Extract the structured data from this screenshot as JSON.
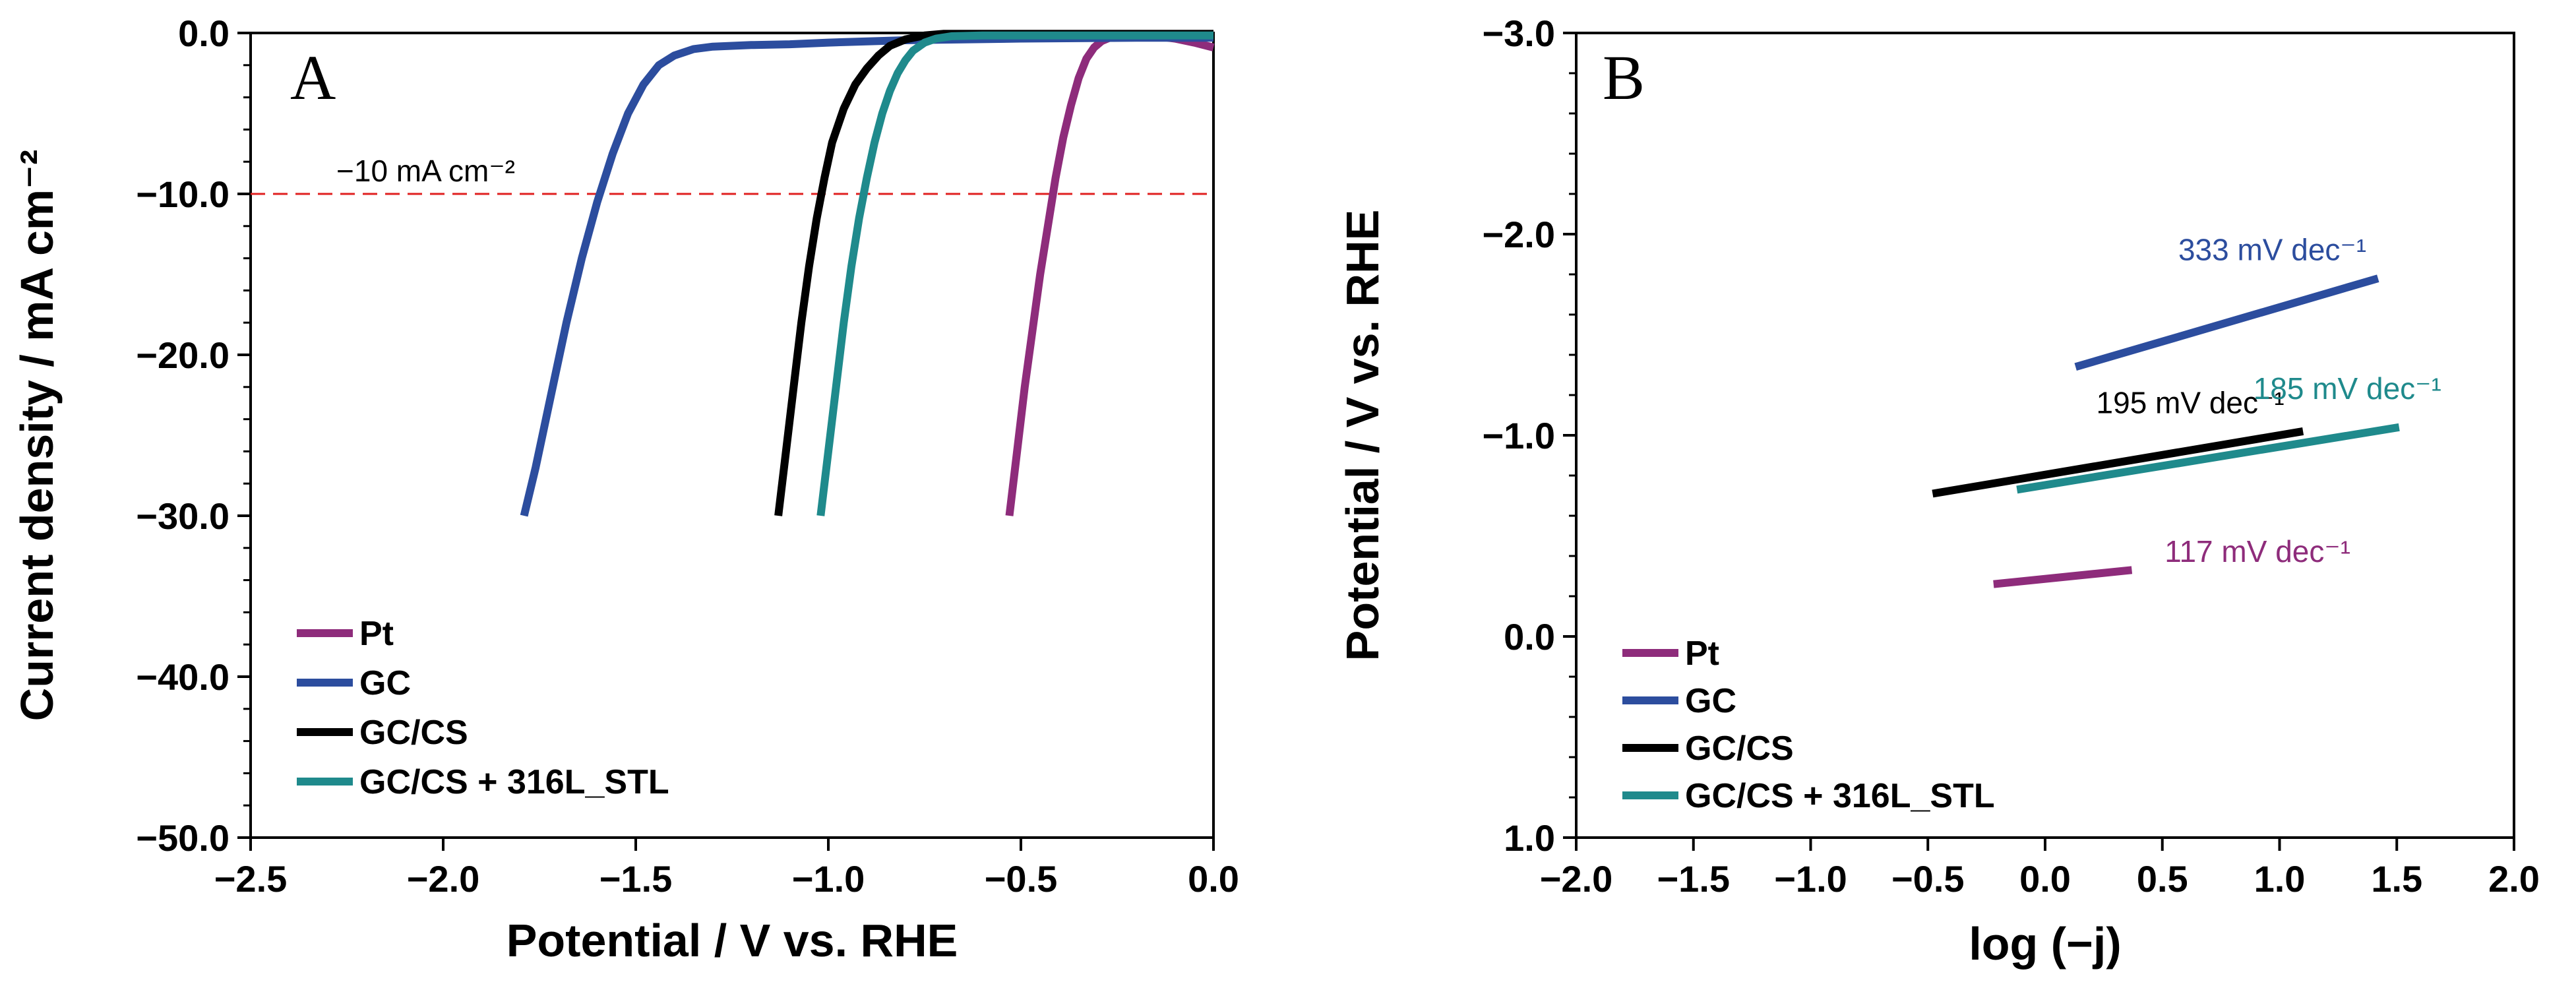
{
  "colors": {
    "Pt": "#8e2c7b",
    "GC": "#2c4d9e",
    "GC/CS": "#000000",
    "GC/CS + 316L_STL": "#1f8a8c",
    "refline": "#e02020"
  },
  "chart_data": [
    {
      "type": "line",
      "panel": "A",
      "xlabel": "Potential / V vs. RHE",
      "ylabel": "Current density / mA cm⁻²",
      "xlim": [
        -2.5,
        0.0
      ],
      "ylim": [
        -50.0,
        0.0
      ],
      "xticks": [
        -2.5,
        -2.0,
        -1.5,
        -1.0,
        -0.5,
        0.0
      ],
      "xtick_labels": [
        "−2.5",
        "−2.0",
        "−1.5",
        "−1.0",
        "−0.5",
        "0.0"
      ],
      "yticks": [
        0.0,
        -10.0,
        -20.0,
        -30.0,
        -40.0,
        -50.0
      ],
      "ytick_labels": [
        "0.0",
        "−10.0",
        "−20.0",
        "−30.0",
        "−40.0",
        "−50.0"
      ],
      "grid": false,
      "legend_position": "bottom-left",
      "reference_line": {
        "y": -10.0,
        "label": "−10 mA cm⁻²"
      },
      "series": [
        {
          "name": "Pt",
          "x": [
            -0.53,
            -0.51,
            -0.49,
            -0.47,
            -0.45,
            -0.43,
            -0.41,
            -0.39,
            -0.37,
            -0.35,
            -0.33,
            -0.31,
            -0.29,
            -0.27,
            -0.25,
            -0.2,
            -0.15,
            -0.1,
            -0.05,
            0.0
          ],
          "y": [
            -30,
            -26,
            -22,
            -18.5,
            -15,
            -12,
            -9,
            -6.5,
            -4.5,
            -2.8,
            -1.6,
            -0.9,
            -0.5,
            -0.3,
            -0.2,
            -0.15,
            -0.2,
            -0.35,
            -0.6,
            -0.9
          ]
        },
        {
          "name": "GC",
          "x": [
            -1.79,
            -1.76,
            -1.72,
            -1.68,
            -1.64,
            -1.6,
            -1.56,
            -1.52,
            -1.48,
            -1.44,
            -1.4,
            -1.35,
            -1.3,
            -1.25,
            -1.2,
            -1.1,
            -1.0,
            -0.8,
            -0.5,
            -0.2,
            0.0
          ],
          "y": [
            -30,
            -27,
            -22.5,
            -18,
            -14,
            -10.5,
            -7.5,
            -5,
            -3.2,
            -2,
            -1.4,
            -1,
            -0.85,
            -0.8,
            -0.75,
            -0.7,
            -0.6,
            -0.45,
            -0.35,
            -0.3,
            -0.3
          ]
        },
        {
          "name": "GC/CS",
          "x": [
            -1.13,
            -1.11,
            -1.09,
            -1.07,
            -1.05,
            -1.03,
            -1.01,
            -0.99,
            -0.96,
            -0.93,
            -0.9,
            -0.87,
            -0.84,
            -0.8,
            -0.75,
            -0.7,
            -0.5,
            -0.2,
            0.0
          ],
          "y": [
            -30,
            -26,
            -22,
            -18,
            -14.5,
            -11.5,
            -9,
            -6.8,
            -4.7,
            -3.2,
            -2.2,
            -1.4,
            -0.8,
            -0.4,
            -0.15,
            -0.05,
            -0.05,
            -0.05,
            -0.05
          ]
        },
        {
          "name": "GC/CS + 316L_STL",
          "x": [
            -1.02,
            -1.0,
            -0.98,
            -0.96,
            -0.94,
            -0.92,
            -0.9,
            -0.88,
            -0.86,
            -0.84,
            -0.82,
            -0.8,
            -0.78,
            -0.75,
            -0.72,
            -0.68,
            -0.6,
            -0.4,
            -0.2,
            0.0
          ],
          "y": [
            -30,
            -26,
            -22,
            -18,
            -14.5,
            -11.5,
            -9,
            -6.8,
            -5,
            -3.6,
            -2.5,
            -1.7,
            -1.1,
            -0.6,
            -0.35,
            -0.2,
            -0.15,
            -0.15,
            -0.15,
            -0.15
          ]
        }
      ]
    },
    {
      "type": "line",
      "panel": "B",
      "xlabel": "log (−j)",
      "ylabel": "Potential / V vs. RHE",
      "xlim": [
        -2.0,
        2.0
      ],
      "ylim": [
        1.0,
        -3.0
      ],
      "xticks": [
        -2.0,
        -1.5,
        -1.0,
        -0.5,
        0.0,
        0.5,
        1.0,
        1.5,
        2.0
      ],
      "xtick_labels": [
        "−2.0",
        "−1.5",
        "−1.0",
        "−0.5",
        "0.0",
        "0.5",
        "1.0",
        "1.5",
        "2.0"
      ],
      "yticks": [
        -3.0,
        -2.0,
        -1.0,
        0.0,
        1.0
      ],
      "ytick_labels": [
        "−3.0",
        "−2.0",
        "−1.0",
        "0.0",
        "1.0"
      ],
      "grid": false,
      "legend_position": "bottom-left",
      "series": [
        {
          "name": "Pt",
          "x": [
            -0.22,
            0.37
          ],
          "y": [
            -0.26,
            -0.33
          ],
          "slope_label": "117 mV dec⁻¹"
        },
        {
          "name": "GC",
          "x": [
            0.13,
            1.42
          ],
          "y": [
            -1.34,
            -1.78
          ],
          "slope_label": "333 mV dec⁻¹"
        },
        {
          "name": "GC/CS",
          "x": [
            -0.48,
            1.1
          ],
          "y": [
            -0.71,
            -1.02
          ],
          "slope_label": "195 mV dec⁻¹"
        },
        {
          "name": "GC/CS + 316L_STL",
          "x": [
            -0.12,
            1.51
          ],
          "y": [
            -0.73,
            -1.04
          ],
          "slope_label": "185 mV dec⁻¹"
        }
      ]
    }
  ]
}
